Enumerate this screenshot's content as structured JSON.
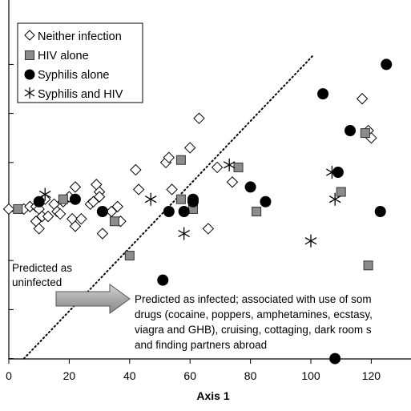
{
  "chart_data": {
    "type": "scatter",
    "xlabel": "Axis 1",
    "ylabel": "",
    "xlim": [
      0,
      132
    ],
    "ylim": [
      -3.2,
      3.2
    ],
    "x_ticks": [
      0,
      20,
      40,
      60,
      80,
      100,
      120
    ],
    "y_ticks": [
      -3,
      -2,
      -1,
      0,
      1,
      2,
      3
    ],
    "legend_position": "top-left",
    "series": [
      {
        "name": "Neither infection",
        "marker": "diamond",
        "points": [
          [
            0,
            0.05
          ],
          [
            5,
            0.05
          ],
          [
            7,
            0.1
          ],
          [
            9,
            0.1
          ],
          [
            10,
            0.05
          ],
          [
            11,
            -0.1
          ],
          [
            9,
            -0.2
          ],
          [
            10,
            -0.35
          ],
          [
            12,
            0.25
          ],
          [
            13,
            -0.1
          ],
          [
            15,
            0.15
          ],
          [
            16,
            0.0
          ],
          [
            17,
            -0.05
          ],
          [
            18,
            0.2
          ],
          [
            20,
            0.3
          ],
          [
            21,
            -0.15
          ],
          [
            22,
            -0.3
          ],
          [
            22,
            0.5
          ],
          [
            24,
            -0.15
          ],
          [
            27,
            0.15
          ],
          [
            28,
            0.2
          ],
          [
            29,
            0.55
          ],
          [
            30,
            0.4
          ],
          [
            30,
            0.3
          ],
          [
            31,
            -0.45
          ],
          [
            34,
            0.0
          ],
          [
            36,
            0.1
          ],
          [
            37,
            -0.2
          ],
          [
            42,
            0.85
          ],
          [
            43,
            0.45
          ],
          [
            52,
            1.0
          ],
          [
            53,
            1.1
          ],
          [
            54,
            0.45
          ],
          [
            60,
            1.3
          ],
          [
            63,
            1.9
          ],
          [
            66,
            -0.35
          ],
          [
            69,
            0.9
          ],
          [
            74,
            0.6
          ],
          [
            117,
            2.3
          ],
          [
            119,
            1.65
          ],
          [
            120,
            1.5
          ]
        ]
      },
      {
        "name": "HIV alone",
        "marker": "square",
        "points": [
          [
            3,
            0.05
          ],
          [
            18,
            0.25
          ],
          [
            35,
            -0.2
          ],
          [
            40,
            -0.9
          ],
          [
            57,
            1.05
          ],
          [
            57,
            0.25
          ],
          [
            61,
            0.05
          ],
          [
            76,
            0.9
          ],
          [
            82,
            0.0
          ],
          [
            110,
            0.4
          ],
          [
            118,
            1.6
          ],
          [
            119,
            -1.1
          ]
        ]
      },
      {
        "name": "Syphilis alone",
        "marker": "circle",
        "points": [
          [
            10,
            0.2
          ],
          [
            22,
            0.25
          ],
          [
            31,
            0.0
          ],
          [
            51,
            -1.4
          ],
          [
            53,
            0.0
          ],
          [
            58,
            0.0
          ],
          [
            61,
            0.25
          ],
          [
            61,
            0.2
          ],
          [
            80,
            0.5
          ],
          [
            85,
            0.2
          ],
          [
            104,
            2.4
          ],
          [
            108,
            -3.0
          ],
          [
            109,
            0.8
          ],
          [
            113,
            1.65
          ],
          [
            123,
            0.0
          ],
          [
            125,
            3.0
          ]
        ]
      },
      {
        "name": "Syphilis and HIV",
        "marker": "star",
        "points": [
          [
            12,
            0.35
          ],
          [
            47,
            0.25
          ],
          [
            58,
            -0.45
          ],
          [
            73,
            0.95
          ],
          [
            100,
            -0.6
          ],
          [
            107,
            0.8
          ],
          [
            108,
            0.25
          ]
        ]
      }
    ],
    "boundary_line": {
      "points": [
        [
          5,
          -3.0
        ],
        [
          101,
          3.2
        ]
      ],
      "style": "dotted"
    },
    "annotations": {
      "uninfected_line1": "Predicted as",
      "uninfected_line2": "uninfected",
      "infected_line1": "Predicted as infected; associated with use of som",
      "infected_line2": "drugs (cocaine, poppers, amphetamines, ecstasy,",
      "infected_line3": "viagra and GHB), cruising, cottaging, dark room s",
      "infected_line4": "and finding partners abroad"
    }
  }
}
